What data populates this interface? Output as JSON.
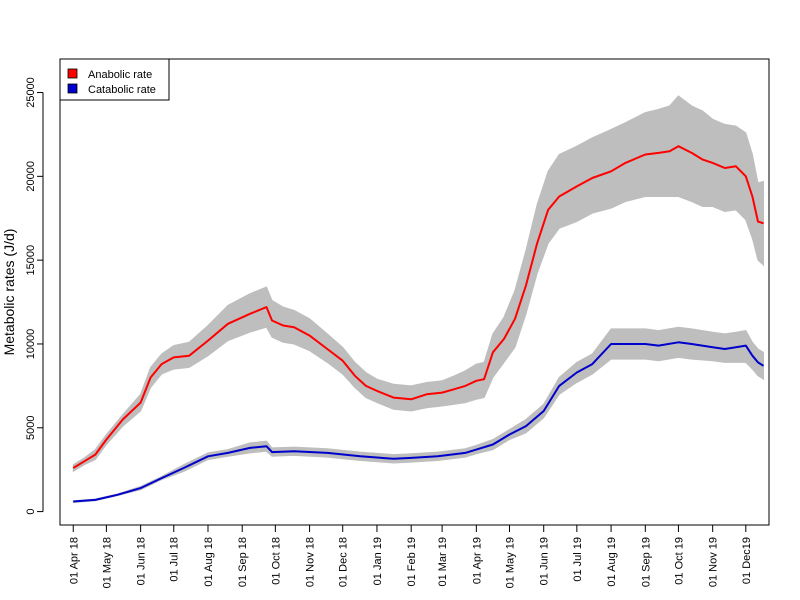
{
  "chart_data": {
    "type": "line",
    "ylabel": "Metabolic rates (J/d)",
    "xlabel": "",
    "ylim": [
      -800,
      27000
    ],
    "xlim": [
      -12,
      630
    ],
    "yticks": [
      0,
      5000,
      10000,
      15000,
      20000,
      25000
    ],
    "yticklabels": [
      "0",
      "5000",
      "10000",
      "15000",
      "20000",
      "25000"
    ],
    "xticks": [
      {
        "day": 0,
        "label": "01 Apr 18"
      },
      {
        "day": 30,
        "label": "01 May 18"
      },
      {
        "day": 61,
        "label": "01 Jun 18"
      },
      {
        "day": 91,
        "label": "01 Jul 18"
      },
      {
        "day": 122,
        "label": "01 Aug 18"
      },
      {
        "day": 153,
        "label": "01 Sep 18"
      },
      {
        "day": 183,
        "label": "01 Oct 18"
      },
      {
        "day": 214,
        "label": "01 Nov 18"
      },
      {
        "day": 244,
        "label": "01 Dec 18"
      },
      {
        "day": 275,
        "label": "01 Jan 19"
      },
      {
        "day": 306,
        "label": "01 Feb 19"
      },
      {
        "day": 334,
        "label": "01 Mar 19"
      },
      {
        "day": 365,
        "label": "01 Apr 19"
      },
      {
        "day": 395,
        "label": "01 May 19"
      },
      {
        "day": 426,
        "label": "01 Jun 19"
      },
      {
        "day": 456,
        "label": "01 Jul 19"
      },
      {
        "day": 487,
        "label": "01 Aug 19"
      },
      {
        "day": 518,
        "label": "01 Sep 19"
      },
      {
        "day": 548,
        "label": "01 Oct 19"
      },
      {
        "day": 579,
        "label": "01 Nov 19"
      },
      {
        "day": 609,
        "label": "01 Dec19"
      }
    ],
    "legend": {
      "position": "top-left",
      "entries": [
        {
          "name": "Anabolic rate",
          "color": "#ff0000"
        },
        {
          "name": "Catabolic rate",
          "color": "#0000cc"
        }
      ]
    },
    "band_color": "#bebebe",
    "series": [
      {
        "name": "Anabolic rate",
        "color": "#ff0000",
        "x": [
          0,
          10,
          20,
          30,
          45,
          61,
          70,
          80,
          91,
          105,
          122,
          140,
          160,
          175,
          180,
          190,
          200,
          214,
          230,
          244,
          255,
          265,
          275,
          290,
          306,
          320,
          334,
          345,
          355,
          365,
          372,
          380,
          390,
          400,
          410,
          420,
          430,
          440,
          456,
          470,
          487,
          500,
          518,
          530,
          540,
          548,
          560,
          570,
          579,
          590,
          600,
          609,
          615,
          620,
          625
        ],
        "y": [
          2600,
          3000,
          3400,
          4300,
          5500,
          6500,
          8000,
          8800,
          9200,
          9300,
          10200,
          11200,
          11800,
          12200,
          11400,
          11100,
          11000,
          10500,
          9700,
          9000,
          8100,
          7500,
          7200,
          6800,
          6700,
          7000,
          7100,
          7300,
          7500,
          7800,
          7900,
          9500,
          10300,
          11500,
          13500,
          16000,
          18000,
          18800,
          19400,
          19900,
          20300,
          20800,
          21300,
          21400,
          21500,
          21800,
          21400,
          21000,
          20800,
          20500,
          20600,
          20000,
          18800,
          17300,
          17200
        ],
        "lower": [
          2400,
          2800,
          3100,
          4000,
          5100,
          6000,
          7400,
          8200,
          8500,
          8600,
          9300,
          10200,
          10700,
          11000,
          10400,
          10100,
          10000,
          9600,
          8900,
          8200,
          7400,
          6800,
          6500,
          6100,
          6000,
          6200,
          6300,
          6400,
          6500,
          6700,
          6800,
          8000,
          8900,
          9800,
          11800,
          14200,
          16000,
          16900,
          17300,
          17800,
          18100,
          18500,
          18800,
          18800,
          18800,
          18800,
          18500,
          18200,
          18200,
          17900,
          18000,
          17400,
          16300,
          15000,
          14700
        ],
        "upper": [
          2800,
          3200,
          3700,
          4600,
          5800,
          7000,
          8600,
          9400,
          9900,
          10100,
          11100,
          12300,
          13000,
          13400,
          12600,
          12200,
          12000,
          11500,
          10600,
          9800,
          8900,
          8300,
          7900,
          7600,
          7500,
          7700,
          7800,
          8100,
          8400,
          8800,
          8900,
          10600,
          11600,
          13200,
          15600,
          18300,
          20300,
          21300,
          21800,
          22300,
          22800,
          23200,
          23800,
          24000,
          24200,
          24800,
          24200,
          23900,
          23400,
          23100,
          23000,
          22600,
          21300,
          19600,
          19700
        ]
      },
      {
        "name": "Catabolic rate",
        "color": "#0000cc",
        "x": [
          0,
          20,
          40,
          61,
          80,
          100,
          122,
          140,
          160,
          175,
          180,
          200,
          230,
          260,
          290,
          306,
          330,
          355,
          365,
          380,
          395,
          410,
          426,
          440,
          456,
          470,
          487,
          500,
          518,
          530,
          548,
          560,
          579,
          590,
          600,
          609,
          615,
          620,
          625
        ],
        "y": [
          600,
          700,
          1000,
          1400,
          2000,
          2600,
          3300,
          3500,
          3800,
          3900,
          3550,
          3600,
          3500,
          3300,
          3150,
          3200,
          3300,
          3500,
          3700,
          4000,
          4600,
          5100,
          6000,
          7500,
          8300,
          8800,
          10000,
          10000,
          10000,
          9900,
          10100,
          10000,
          9800,
          9700,
          9800,
          9900,
          9300,
          8900,
          8700
        ],
        "lower": [
          550,
          650,
          950,
          1300,
          1900,
          2400,
          3100,
          3300,
          3500,
          3600,
          3300,
          3350,
          3250,
          3050,
          2900,
          2950,
          3050,
          3250,
          3450,
          3700,
          4300,
          4700,
          5600,
          7000,
          7700,
          8200,
          9100,
          9100,
          9100,
          9000,
          9200,
          9100,
          9000,
          8900,
          8900,
          8900,
          8500,
          8100,
          7900
        ],
        "upper": [
          650,
          750,
          1050,
          1500,
          2100,
          2800,
          3500,
          3700,
          4100,
          4200,
          3800,
          3850,
          3750,
          3550,
          3400,
          3450,
          3550,
          3750,
          3950,
          4300,
          4900,
          5500,
          6400,
          8000,
          8900,
          9400,
          10900,
          10900,
          10900,
          10800,
          11000,
          10900,
          10700,
          10600,
          10700,
          10800,
          10100,
          9700,
          9500
        ]
      }
    ]
  }
}
